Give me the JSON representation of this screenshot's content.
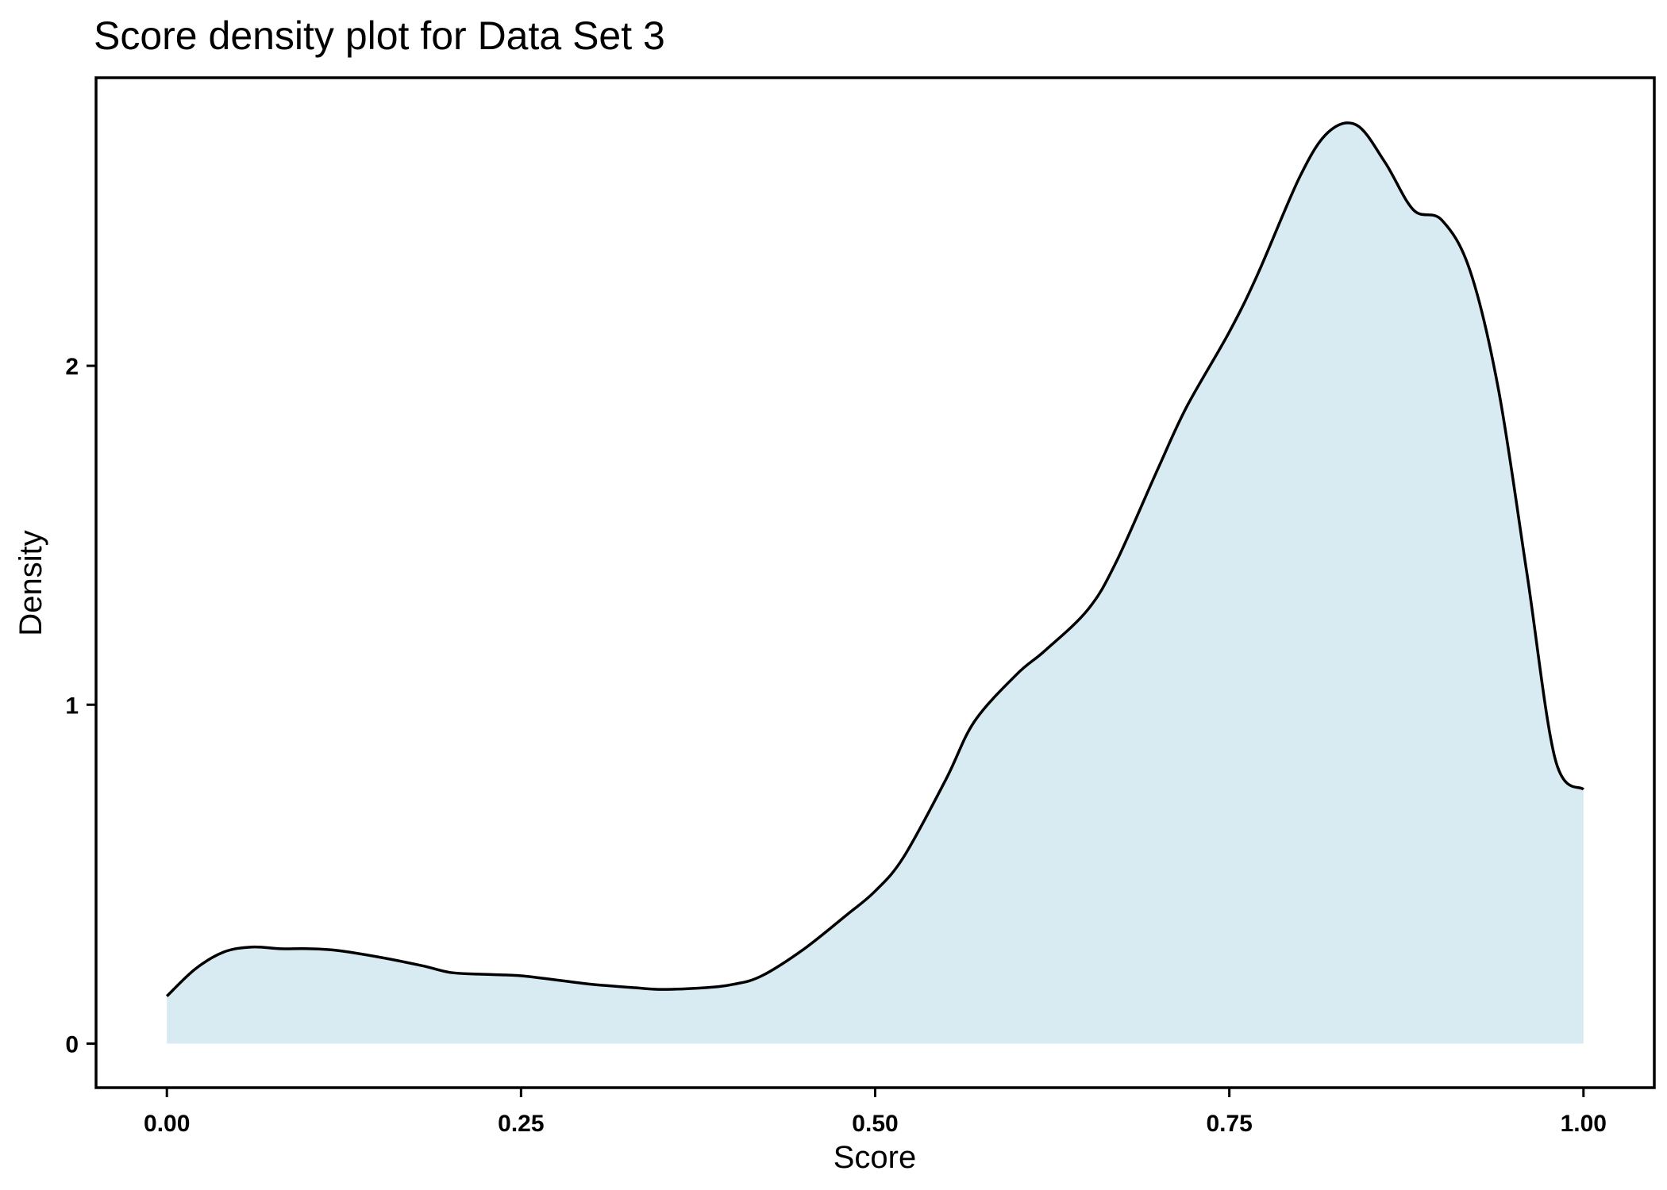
{
  "chart_data": {
    "type": "area",
    "title": "Score density plot for Data Set 3",
    "xlabel": "Score",
    "ylabel": "Density",
    "xlim": [
      -0.05,
      1.05
    ],
    "ylim": [
      -0.13,
      2.85
    ],
    "x_ticks": [
      0.0,
      0.25,
      0.5,
      0.75,
      1.0
    ],
    "x_tick_labels": [
      "0.00",
      "0.25",
      "0.50",
      "0.75",
      "1.00"
    ],
    "y_ticks": [
      0,
      1,
      2
    ],
    "y_tick_labels": [
      "0",
      "1",
      "2"
    ],
    "grid": false,
    "legend": "none",
    "fill_color": "#d8ebf3",
    "line_color": "#000000",
    "series": [
      {
        "x": [
          0.0,
          0.02,
          0.04,
          0.06,
          0.08,
          0.1,
          0.12,
          0.15,
          0.18,
          0.2,
          0.22,
          0.25,
          0.28,
          0.3,
          0.33,
          0.35,
          0.38,
          0.4,
          0.42,
          0.45,
          0.48,
          0.5,
          0.52,
          0.55,
          0.57,
          0.6,
          0.62,
          0.65,
          0.67,
          0.7,
          0.72,
          0.75,
          0.77,
          0.8,
          0.82,
          0.84,
          0.86,
          0.88,
          0.9,
          0.92,
          0.94,
          0.96,
          0.98,
          1.0
        ],
        "y": [
          0.14,
          0.22,
          0.27,
          0.285,
          0.28,
          0.28,
          0.275,
          0.255,
          0.23,
          0.21,
          0.205,
          0.2,
          0.185,
          0.175,
          0.165,
          0.16,
          0.165,
          0.175,
          0.2,
          0.28,
          0.38,
          0.45,
          0.55,
          0.78,
          0.95,
          1.09,
          1.16,
          1.28,
          1.42,
          1.7,
          1.88,
          2.1,
          2.27,
          2.56,
          2.69,
          2.71,
          2.6,
          2.46,
          2.43,
          2.28,
          1.93,
          1.39,
          0.84,
          0.75
        ]
      }
    ]
  }
}
